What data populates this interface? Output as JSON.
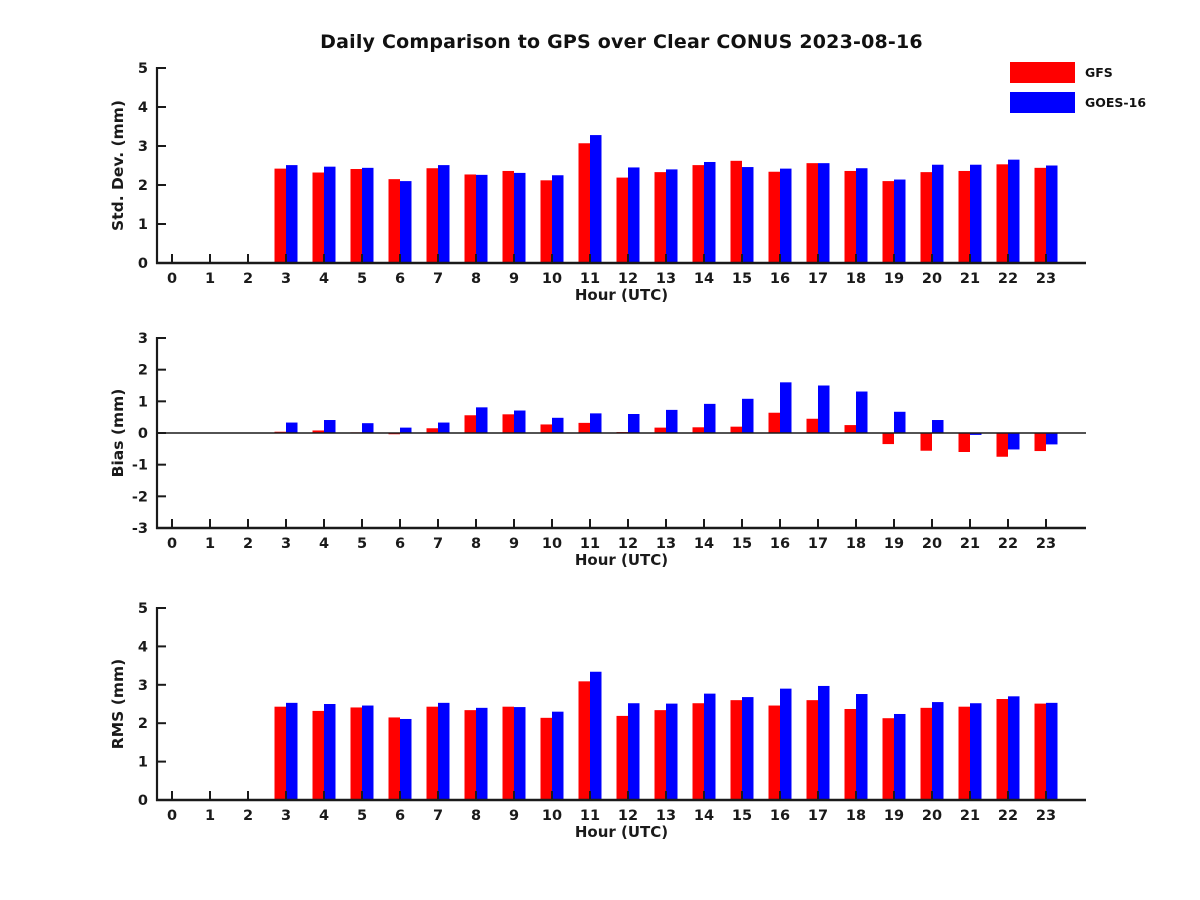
{
  "title": "Daily Comparison to GPS over Clear CONUS 2023-08-16",
  "background_color": "#ffffff",
  "text_color": "#1a1a1a",
  "legend": [
    {
      "label": "GFS",
      "color": "#ff0000"
    },
    {
      "label": "GOES-16",
      "color": "#0000ff"
    }
  ],
  "chart_data": [
    {
      "type": "bar",
      "subplot": "top",
      "ylabel": "Std. Dev. (mm)",
      "xlabel": "Hour (UTC)",
      "ylim": [
        0,
        5
      ],
      "yticks": [
        0,
        1,
        2,
        3,
        4,
        5
      ],
      "grid": false,
      "categories": [
        0,
        1,
        2,
        3,
        4,
        5,
        6,
        7,
        8,
        9,
        10,
        11,
        12,
        13,
        14,
        15,
        16,
        17,
        18,
        19,
        20,
        21,
        22,
        23
      ],
      "series": [
        {
          "name": "GFS",
          "color": "#ff0000",
          "values": [
            null,
            null,
            null,
            2.42,
            2.32,
            2.41,
            2.15,
            2.43,
            2.27,
            2.36,
            2.12,
            3.07,
            2.19,
            2.33,
            2.51,
            2.62,
            2.34,
            2.56,
            2.36,
            2.1,
            2.33,
            2.36,
            2.53,
            2.44
          ]
        },
        {
          "name": "GOES-16",
          "color": "#0000ff",
          "values": [
            null,
            null,
            null,
            2.51,
            2.47,
            2.44,
            2.1,
            2.51,
            2.26,
            2.31,
            2.25,
            3.28,
            2.45,
            2.4,
            2.59,
            2.46,
            2.42,
            2.56,
            2.43,
            2.14,
            2.52,
            2.52,
            2.65,
            2.5
          ]
        }
      ]
    },
    {
      "type": "bar",
      "subplot": "middle",
      "ylabel": "Bias (mm)",
      "xlabel": "Hour (UTC)",
      "ylim": [
        -3,
        3
      ],
      "yticks": [
        -3,
        -2,
        -1,
        0,
        1,
        2,
        3
      ],
      "zero_line": true,
      "grid": false,
      "categories": [
        0,
        1,
        2,
        3,
        4,
        5,
        6,
        7,
        8,
        9,
        10,
        11,
        12,
        13,
        14,
        15,
        16,
        17,
        18,
        19,
        20,
        21,
        22,
        23
      ],
      "series": [
        {
          "name": "GFS",
          "color": "#ff0000",
          "values": [
            null,
            null,
            null,
            0.04,
            0.08,
            0.02,
            -0.04,
            0.15,
            0.56,
            0.59,
            0.27,
            0.32,
            0.03,
            0.17,
            0.18,
            0.2,
            0.64,
            0.45,
            0.25,
            -0.35,
            -0.56,
            -0.6,
            -0.75,
            -0.57
          ]
        },
        {
          "name": "GOES-16",
          "color": "#0000ff",
          "values": [
            null,
            null,
            null,
            0.33,
            0.41,
            0.31,
            0.17,
            0.33,
            0.81,
            0.71,
            0.48,
            0.62,
            0.6,
            0.73,
            0.92,
            1.08,
            1.6,
            1.5,
            1.31,
            0.67,
            0.41,
            -0.06,
            -0.52,
            -0.36
          ]
        }
      ]
    },
    {
      "type": "bar",
      "subplot": "bottom",
      "ylabel": "RMS (mm)",
      "xlabel": "Hour (UTC)",
      "ylim": [
        0,
        5
      ],
      "yticks": [
        0,
        1,
        2,
        3,
        4,
        5
      ],
      "grid": false,
      "categories": [
        0,
        1,
        2,
        3,
        4,
        5,
        6,
        7,
        8,
        9,
        10,
        11,
        12,
        13,
        14,
        15,
        16,
        17,
        18,
        19,
        20,
        21,
        22,
        23
      ],
      "series": [
        {
          "name": "GFS",
          "color": "#ff0000",
          "values": [
            null,
            null,
            null,
            2.43,
            2.32,
            2.41,
            2.15,
            2.43,
            2.34,
            2.43,
            2.14,
            3.09,
            2.19,
            2.34,
            2.52,
            2.6,
            2.46,
            2.6,
            2.37,
            2.13,
            2.4,
            2.43,
            2.63,
            2.51
          ]
        },
        {
          "name": "GOES-16",
          "color": "#0000ff",
          "values": [
            null,
            null,
            null,
            2.53,
            2.5,
            2.46,
            2.11,
            2.53,
            2.4,
            2.42,
            2.3,
            3.34,
            2.52,
            2.51,
            2.77,
            2.68,
            2.9,
            2.97,
            2.76,
            2.24,
            2.55,
            2.52,
            2.7,
            2.53
          ]
        }
      ]
    }
  ]
}
